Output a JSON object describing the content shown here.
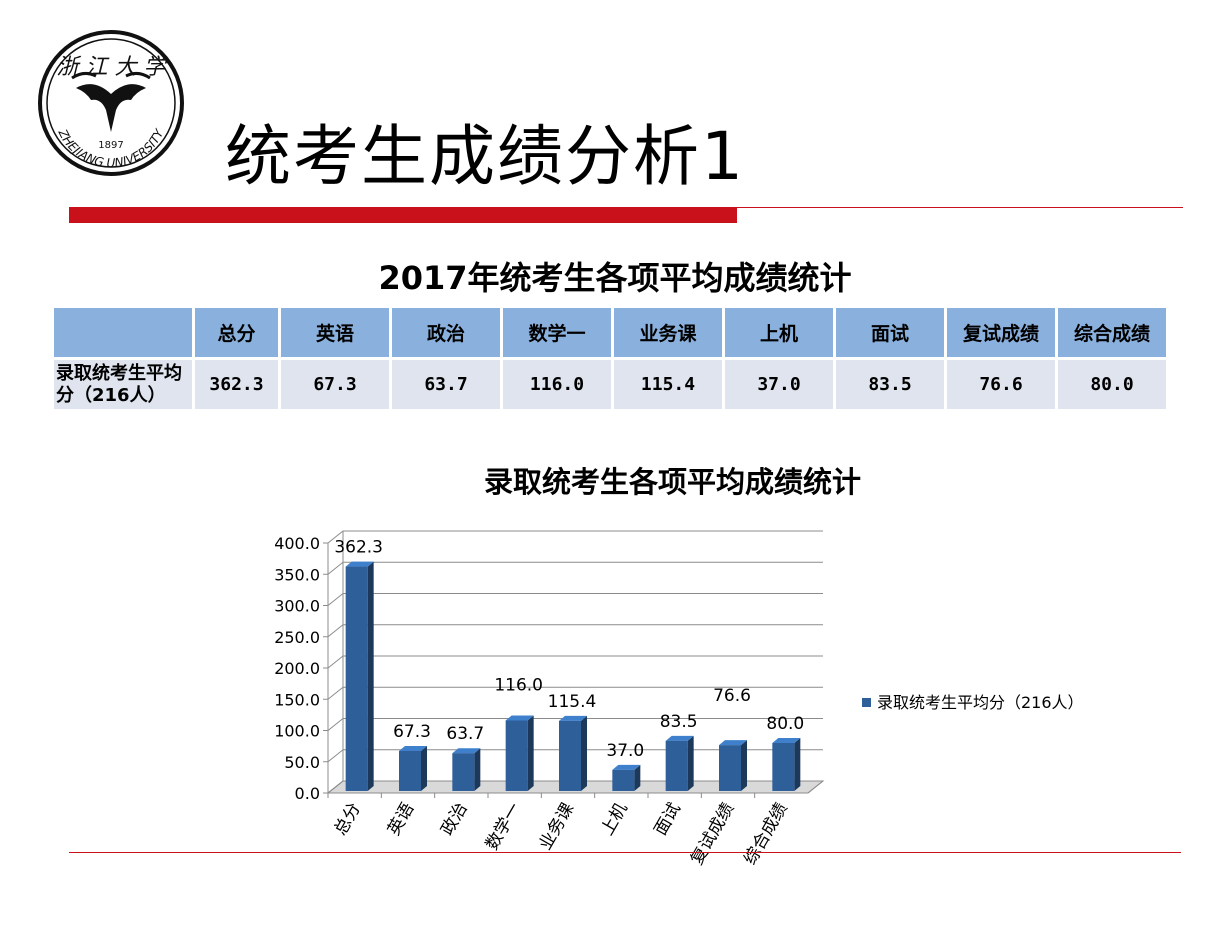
{
  "slide": {
    "title": "统考生成绩分析1",
    "logo_text": "ZHEJIANG UNIVERSITY",
    "logo_year": "1897",
    "accent_color": "#c8111a"
  },
  "table": {
    "title": "2017年统考生各项平均成绩统计",
    "header_color": "#8ab0dd",
    "row_color": "#dfe4ee",
    "columns": [
      "",
      "总分",
      "英语",
      "政治",
      "数学一",
      "业务课",
      "上机",
      "面试",
      "复试成绩",
      "综合成绩"
    ],
    "rows": [
      {
        "label": "录取统考生平均分（216人）",
        "values": [
          "362.3",
          "67.3",
          "63.7",
          "116.0",
          "115.4",
          "37.0",
          "83.5",
          "76.6",
          "80.0"
        ]
      }
    ]
  },
  "chart_data": {
    "type": "bar",
    "title": "录取统考生各项平均成绩统计",
    "categories": [
      "总分",
      "英语",
      "政治",
      "数学一",
      "业务课",
      "上机",
      "面试",
      "复试成绩",
      "综合成绩"
    ],
    "series": [
      {
        "name": "录取统考生平均分（216人）",
        "values": [
          362.3,
          67.3,
          63.7,
          116.0,
          115.4,
          37.0,
          83.5,
          76.6,
          80.0
        ],
        "data_labels": [
          "362.3",
          "67.3",
          "63.7",
          "116.0",
          "115.4",
          "37.0",
          "83.5",
          "76.6",
          "80.0"
        ],
        "color": "#2f5f98"
      }
    ],
    "ylim": [
      0,
      400
    ],
    "yticks": [
      "0.0",
      "50.0",
      "100.0",
      "150.0",
      "200.0",
      "250.0",
      "300.0",
      "350.0",
      "400.0"
    ],
    "grid": true,
    "legend_position": "right",
    "xlabel": "",
    "ylabel": ""
  }
}
